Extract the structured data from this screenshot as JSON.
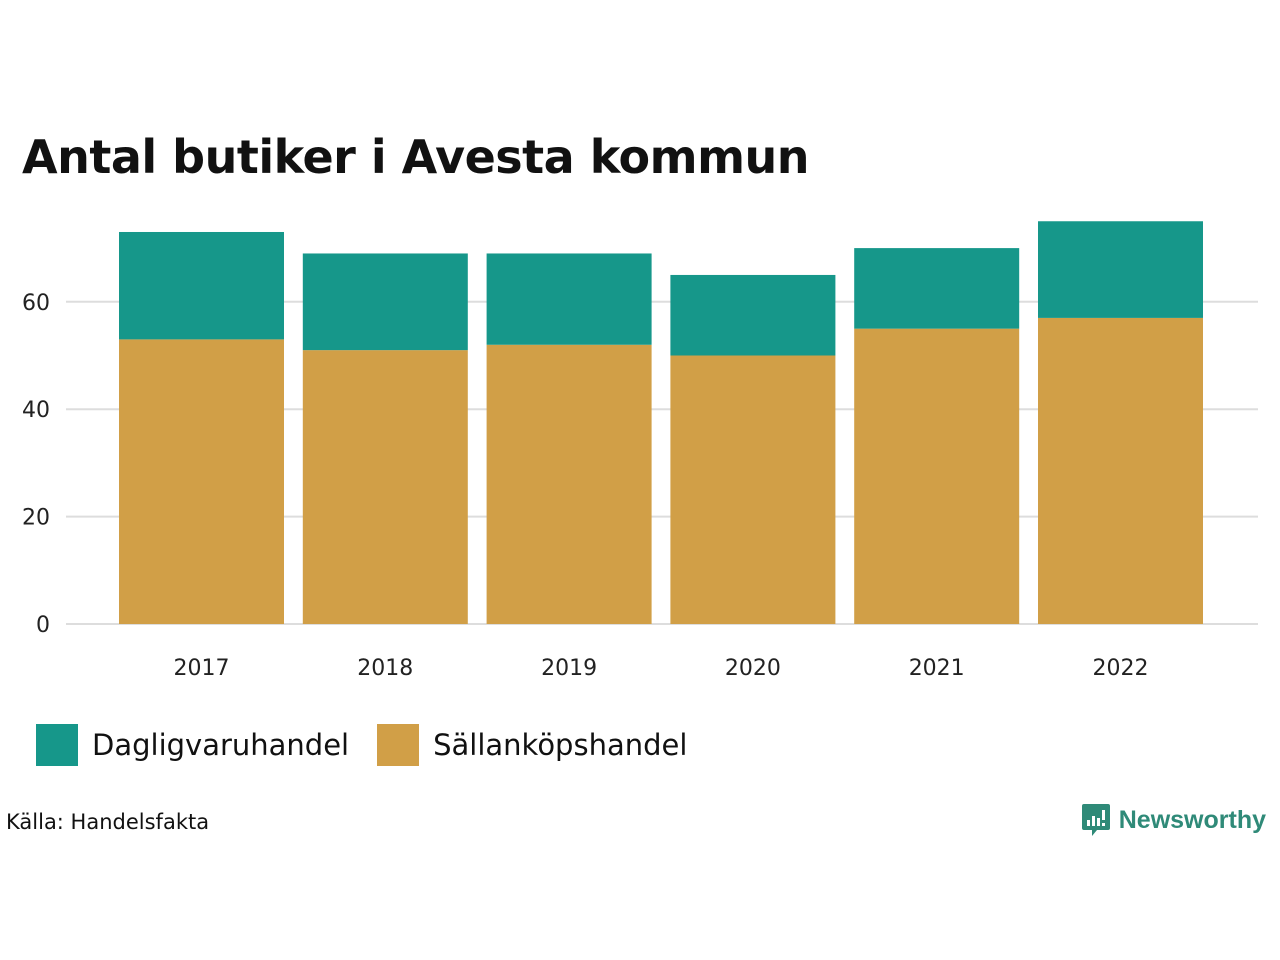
{
  "colors": {
    "dagligvaruhandel": "#16978a",
    "sallankopshandel": "#d19f47",
    "grid": "#dddddd",
    "brand": "#2f8a78"
  },
  "chart_data": {
    "type": "bar",
    "stacked": true,
    "title": "Antal butiker i Avesta kommun",
    "xlabel": "",
    "ylabel": "",
    "categories": [
      "2017",
      "2018",
      "2019",
      "2020",
      "2021",
      "2022"
    ],
    "series": [
      {
        "name": "Sällanköpshandel",
        "key": "sallankopshandel",
        "values": [
          53,
          51,
          52,
          50,
          55,
          57
        ]
      },
      {
        "name": "Dagligvaruhandel",
        "key": "dagligvaruhandel",
        "values": [
          20,
          18,
          17,
          15,
          15,
          18
        ]
      }
    ],
    "ylim": [
      0,
      75
    ],
    "yticks": [
      0,
      20,
      40,
      60
    ],
    "grid": true,
    "legend_position": "bottom-left",
    "legend": [
      "Dagligvaruhandel",
      "Sällanköpshandel"
    ]
  },
  "footer": {
    "source": "Källa: Handelsfakta",
    "brand": "Newsworthy",
    "brand_icon": "newsworthy-logo-icon"
  }
}
